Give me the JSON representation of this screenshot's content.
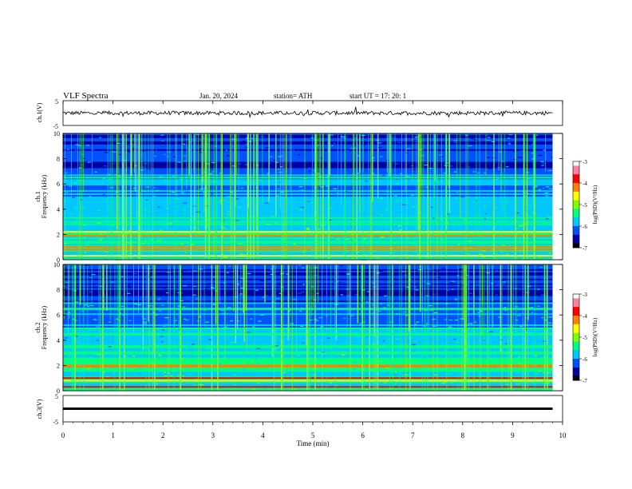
{
  "header": {
    "title": "VLF  Spectra",
    "date": "Jan. 20, 2024",
    "station": "station= ATH",
    "start": "start  UT  =    17: 20: 1"
  },
  "chart_data": [
    {
      "type": "line",
      "name": "ch1-waveform",
      "ylabel": "ch.1(V)",
      "ylim": [
        -5,
        5
      ],
      "y_ticks": [
        "5",
        "-5"
      ],
      "xlim": [
        0,
        10
      ],
      "baseline_v": 0.0,
      "noise_amplitude_v": 0.8
    },
    {
      "type": "heatmap",
      "name": "ch1-spectrogram",
      "ylabel": "ch.1\nFrequency  (kHz)",
      "ylabel_lines": [
        "ch.1",
        "Frequency  (kHz)"
      ],
      "ylim": [
        0,
        10
      ],
      "y_ticks": [
        "10",
        "8",
        "6",
        "4",
        "2",
        "0"
      ],
      "xlim": [
        0,
        9.8
      ],
      "colorbar": {
        "label": "log(PSD)(V²/Hz)",
        "range": [
          -7,
          -3
        ],
        "ticks": [
          "-3",
          "-4",
          "-5",
          "-6",
          "-7"
        ],
        "colors": [
          "#000000",
          "#0000a0",
          "#0050ff",
          "#00c8ff",
          "#00ff80",
          "#80ff00",
          "#ffff00",
          "#ff8000",
          "#ff0000",
          "#ff80a0",
          "#ffffff"
        ]
      },
      "bands_khz": [
        0.3,
        0.8,
        1.0,
        1.9,
        2.2,
        3.0,
        6.5
      ]
    },
    {
      "type": "heatmap",
      "name": "ch2-spectrogram",
      "ylabel": "ch.2\nFrequency  (kHz)",
      "ylabel_lines": [
        "ch.2",
        "Frequency  (kHz)"
      ],
      "ylim": [
        0,
        10
      ],
      "y_ticks": [
        "10",
        "8",
        "6",
        "4",
        "2",
        "0"
      ],
      "xlim": [
        0,
        9.8
      ],
      "colorbar": {
        "label": "log(PSD)(V²/Hz)",
        "range": [
          -7,
          -3
        ],
        "ticks": [
          "-3",
          "-4",
          "-5",
          "-6",
          "-7"
        ],
        "colors": [
          "#000000",
          "#0000a0",
          "#0050ff",
          "#00c8ff",
          "#00ff80",
          "#80ff00",
          "#ffff00",
          "#ff8000",
          "#ff0000",
          "#ff80a0",
          "#ffffff"
        ]
      },
      "bands_khz": [
        0.3,
        0.8,
        1.0,
        1.9,
        2.0,
        3.0,
        4.5,
        6.5
      ]
    },
    {
      "type": "line",
      "name": "ch3-waveform",
      "ylabel": "ch.3(V)",
      "ylim": [
        -5,
        5
      ],
      "y_ticks": [
        "5",
        "-5"
      ],
      "xlim": [
        0,
        10
      ],
      "baseline_v": 0.0,
      "noise_amplitude_v": 0.0
    }
  ],
  "xaxis": {
    "label": "Time  (min)",
    "ticks": [
      "0",
      "1",
      "2",
      "3",
      "4",
      "5",
      "6",
      "7",
      "8",
      "9",
      "10"
    ],
    "range": [
      0,
      10
    ]
  }
}
